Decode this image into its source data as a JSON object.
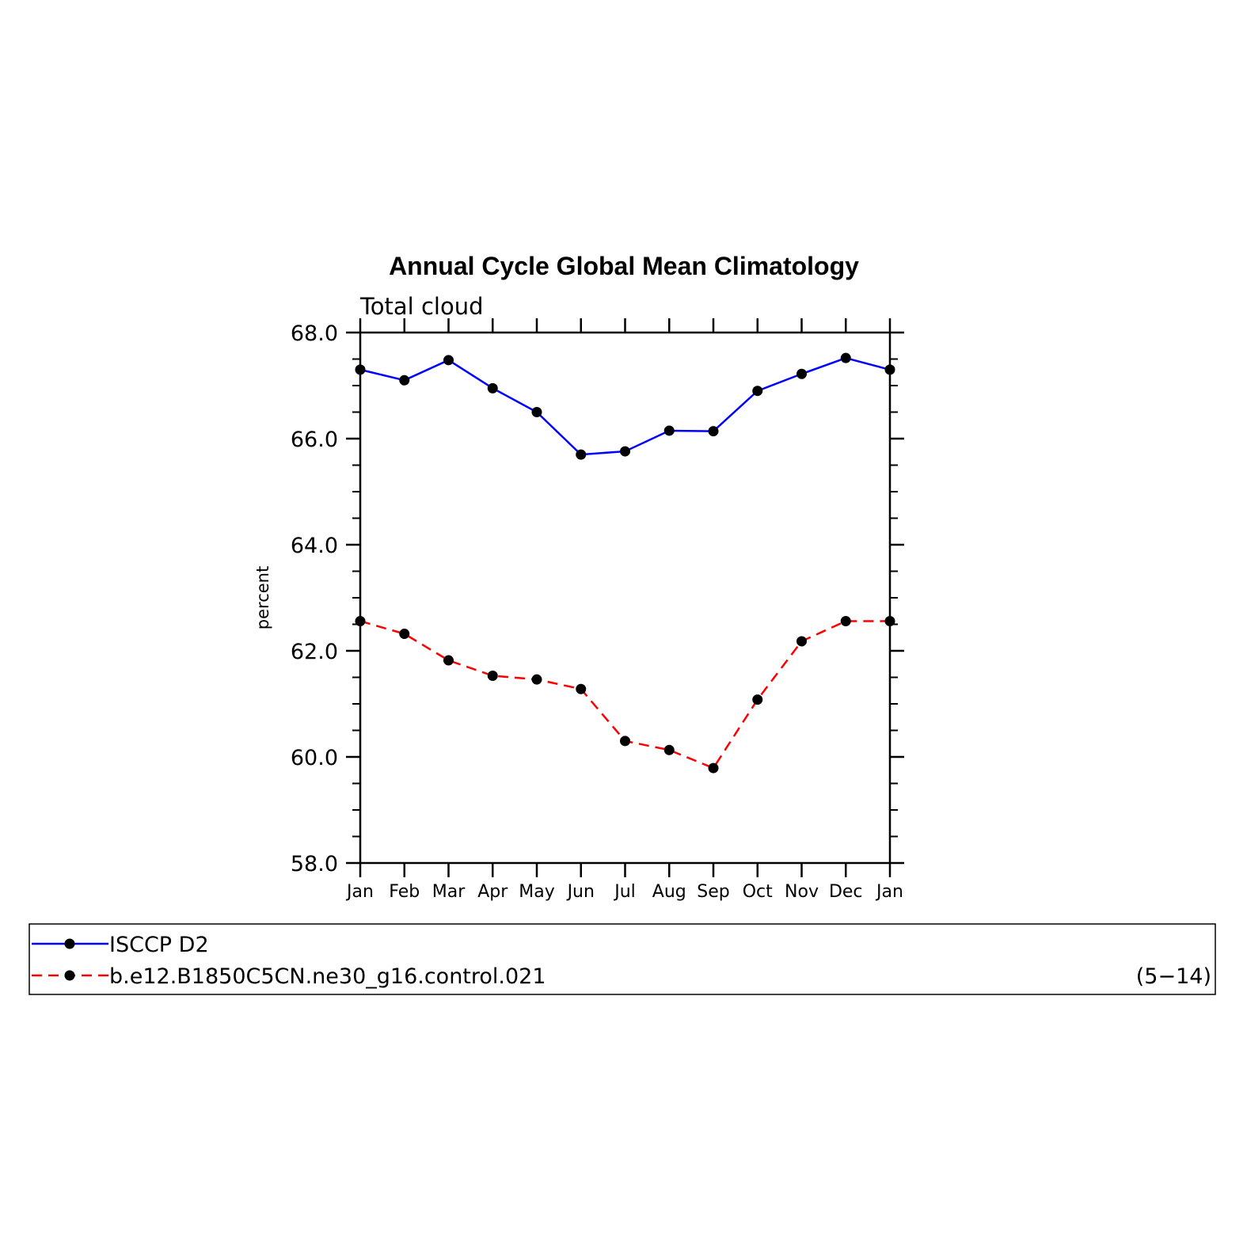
{
  "chart_data": {
    "type": "line",
    "title": "Annual Cycle Global Mean Climatology",
    "subtitle": "Total cloud",
    "xlabel": "",
    "ylabel": "percent",
    "categories": [
      "Jan",
      "Feb",
      "Mar",
      "Apr",
      "May",
      "Jun",
      "Jul",
      "Aug",
      "Sep",
      "Oct",
      "Nov",
      "Dec",
      "Jan"
    ],
    "ylim": [
      58.0,
      68.0
    ],
    "yticks": [
      "58.0",
      "60.0",
      "62.0",
      "64.0",
      "66.0",
      "68.0"
    ],
    "ytick_values": [
      58,
      60,
      62,
      64,
      66,
      68
    ],
    "yminor_step": 0.5,
    "grid": false,
    "legend_placement": "bottom",
    "series": [
      {
        "name": "ISCCP D2",
        "color": "#0000ff",
        "style": "solid",
        "values": [
          67.3,
          67.1,
          67.48,
          66.95,
          66.5,
          65.7,
          65.76,
          66.15,
          66.14,
          66.9,
          67.22,
          67.52,
          67.3
        ]
      },
      {
        "name": "b.e12.B1850C5CN.ne30_g16.control.021",
        "color": "#ff0000",
        "style": "dashed",
        "values": [
          62.56,
          62.32,
          61.82,
          61.53,
          61.46,
          61.28,
          60.3,
          60.13,
          59.79,
          61.08,
          62.18,
          62.56,
          62.56
        ]
      }
    ],
    "annotation": "(5−14)"
  }
}
